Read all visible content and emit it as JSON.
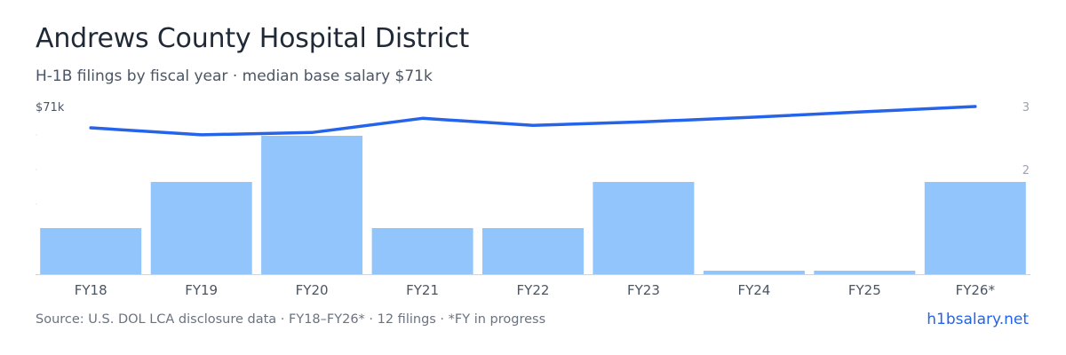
{
  "header": {
    "title": "Andrews County Hospital District",
    "subtitle": "H-1B filings by fiscal year · median base salary $71k"
  },
  "footer": {
    "source": "Source: U.S. DOL LCA disclosure data · FY18–FY26* · 12 filings · *FY in progress",
    "brand": "h1bsalary.net"
  },
  "colors": {
    "bar": "#93c5fd",
    "line": "#2563eb",
    "axis_text": "#4b5563",
    "right_axis_text": "#9ca3af",
    "baseline": "#d1d5db"
  },
  "chart_data": {
    "type": "bar",
    "categories": [
      "FY18",
      "FY19",
      "FY20",
      "FY21",
      "FY22",
      "FY23",
      "FY24",
      "FY25",
      "FY26*"
    ],
    "series": [
      {
        "type": "bar",
        "axis": "right",
        "values": [
          1,
          2,
          3,
          1,
          1,
          2,
          0,
          0,
          2
        ]
      },
      {
        "type": "line",
        "axis": "left",
        "values": [
          62,
          59,
          60,
          66,
          63,
          64.5,
          66.5,
          68.8,
          71
        ]
      }
    ],
    "left_axis": {
      "tick_labels": [
        "$71k"
      ],
      "ylim": [
        0,
        71
      ]
    },
    "right_axis": {
      "tick_labels": [
        "2",
        "3"
      ],
      "ylim": [
        0,
        3.7
      ]
    },
    "grid": false
  }
}
